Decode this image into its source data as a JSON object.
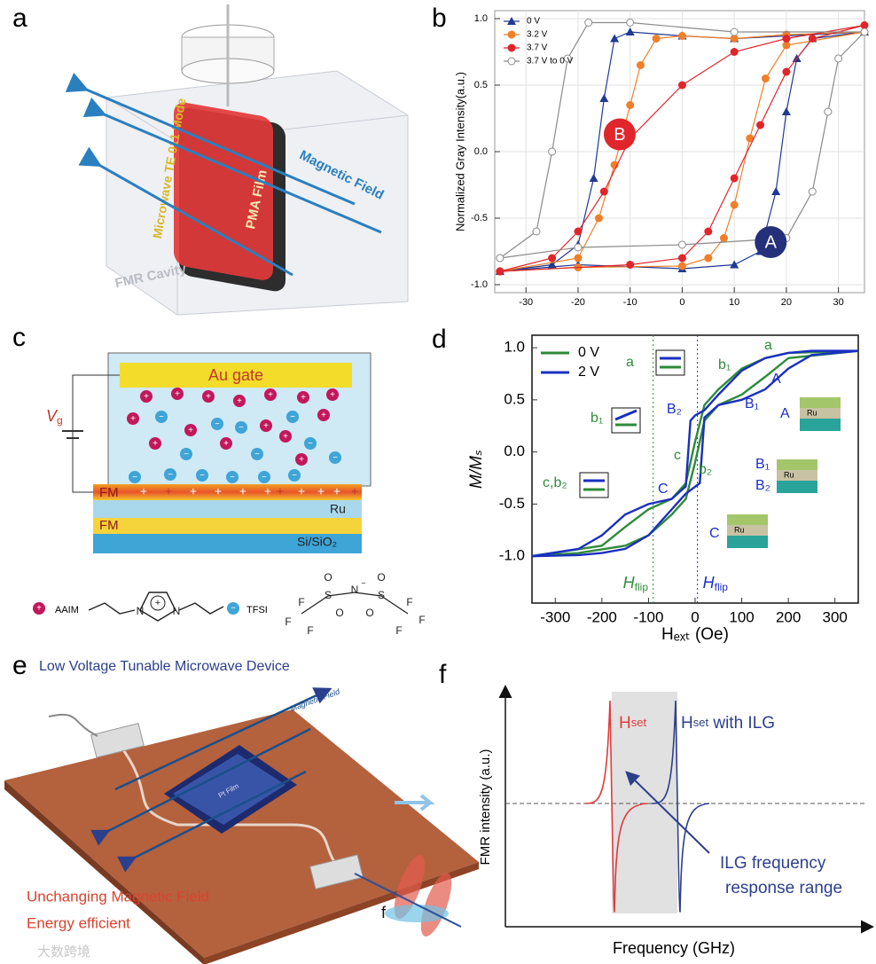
{
  "chart_data": [
    {
      "type": "line",
      "label": "b",
      "ylabel": "Normalized Gray Intensity(a.u.)",
      "xlim": [
        -36,
        35
      ],
      "ylim": [
        -1.06,
        1.06
      ],
      "xticks": [
        -30,
        -20,
        -10,
        0,
        10,
        20,
        30
      ],
      "yticks": [
        {
          "value": -1,
          "label": "-1.0"
        },
        -0.5,
        {
          "value": 0,
          "label": "0.0"
        },
        0.5,
        {
          "value": 1,
          "label": "1.0"
        }
      ],
      "grid": true,
      "legend": "upper left",
      "series": [
        {
          "name": "0 V",
          "color": "#1f3a93",
          "marker": "triangle",
          "x": [
            -35,
            -20,
            0,
            10,
            15,
            18,
            20,
            22,
            25,
            35,
            20,
            10,
            0,
            -10,
            -13,
            -15,
            -17,
            -20,
            -25,
            -35
          ],
          "values": [
            -0.9,
            -0.85,
            -0.88,
            -0.85,
            -0.75,
            -0.3,
            0.3,
            0.7,
            0.85,
            0.9,
            0.87,
            0.85,
            0.87,
            0.9,
            0.85,
            0.4,
            -0.2,
            -0.7,
            -0.85,
            -0.9
          ]
        },
        {
          "name": "3.2 V",
          "color": "#f07f2a",
          "marker": "circle",
          "x": [
            -35,
            -20,
            0,
            5,
            8,
            10,
            13,
            16,
            20,
            35,
            20,
            10,
            0,
            -5,
            -8,
            -10,
            -13,
            -16,
            -20,
            -35
          ],
          "values": [
            -0.9,
            -0.87,
            -0.86,
            -0.8,
            -0.65,
            -0.4,
            0.1,
            0.55,
            0.8,
            0.9,
            0.88,
            0.85,
            0.87,
            0.85,
            0.65,
            0.35,
            -0.1,
            -0.5,
            -0.8,
            -0.9
          ]
        },
        {
          "name": "3.7 V",
          "color": "#e0262b",
          "marker": "circle",
          "x": [
            -35,
            -10,
            0,
            5,
            10,
            15,
            20,
            25,
            35,
            20,
            10,
            0,
            -10,
            -15,
            -20,
            -25,
            -35
          ],
          "values": [
            -0.9,
            -0.85,
            -0.8,
            -0.6,
            -0.2,
            0.2,
            0.6,
            0.85,
            0.95,
            0.85,
            0.75,
            0.5,
            0.1,
            -0.3,
            -0.6,
            -0.8,
            -0.9
          ]
        },
        {
          "name": "3.7 V to 0 V",
          "color": "#8a8a8a",
          "marker": "open-circle",
          "x": [
            -35,
            -20,
            0,
            20,
            25,
            28,
            30,
            35,
            10,
            -10,
            -18,
            -22,
            -25,
            -28,
            -35
          ],
          "values": [
            -0.8,
            -0.72,
            -0.7,
            -0.65,
            -0.3,
            0.3,
            0.7,
            0.9,
            0.9,
            0.97,
            0.97,
            0.7,
            0,
            -0.6,
            -0.8
          ]
        }
      ],
      "annotations": [
        {
          "text": "A",
          "color": "#24307a"
        },
        {
          "text": "B",
          "color": "#e0262b"
        }
      ]
    },
    {
      "type": "line",
      "label": "d",
      "ylabel": "M/Mₛ",
      "xlabel": "Hₑₓₜ (Oe)",
      "xlim": [
        -350,
        350
      ],
      "ylim": [
        -1.45,
        1.12
      ],
      "xticks": [
        -300,
        -200,
        -100,
        0,
        100,
        200,
        300
      ],
      "yticks": [
        {
          "value": -1,
          "label": "-1.0"
        },
        -0.5,
        {
          "value": 0,
          "label": "0.0"
        },
        0.5,
        {
          "value": 1,
          "label": "1.0"
        }
      ],
      "grid": false,
      "legend": "upper left",
      "series": [
        {
          "name": "0 V",
          "color": "#2e8b3a",
          "x": [
            -350,
            -250,
            -150,
            -100,
            -50,
            -20,
            0,
            20,
            50,
            100,
            150,
            200,
            350,
            200,
            150,
            100,
            50,
            20,
            0,
            -20,
            -50,
            -100,
            -150,
            -200,
            -350
          ],
          "values": [
            -1,
            -0.97,
            -0.9,
            -0.8,
            -0.6,
            -0.45,
            -0.1,
            0.3,
            0.45,
            0.55,
            0.72,
            0.9,
            0.97,
            0.95,
            0.9,
            0.8,
            0.6,
            0.45,
            0.1,
            -0.3,
            -0.45,
            -0.55,
            -0.72,
            -0.9,
            -1
          ]
        },
        {
          "name": "2 V",
          "color": "#1a2fc0",
          "x": [
            -350,
            -250,
            -200,
            -150,
            -100,
            -50,
            -20,
            10,
            20,
            50,
            100,
            150,
            200,
            250,
            350,
            250,
            200,
            150,
            100,
            50,
            20,
            0,
            -10,
            -20,
            -50,
            -100,
            -150,
            -200,
            -250,
            -350
          ],
          "values": [
            -1,
            -0.99,
            -0.97,
            -0.93,
            -0.8,
            -0.55,
            -0.4,
            -0.3,
            0.33,
            0.45,
            0.5,
            0.6,
            0.8,
            0.93,
            0.97,
            0.97,
            0.95,
            0.9,
            0.78,
            0.55,
            0.4,
            0.35,
            0.3,
            -0.33,
            -0.45,
            -0.5,
            -0.6,
            -0.8,
            -0.93,
            -1
          ]
        }
      ],
      "vlines": [
        {
          "x": -90,
          "color": "#2e8b3a",
          "main": "H",
          "sub": "flip"
        },
        {
          "x": 5,
          "color": "#1a2fc0",
          "main": "H",
          "sub": "flip"
        }
      ],
      "annotations": [
        {
          "text": "a",
          "color": "#2e8b3a"
        },
        {
          "text": "b₁",
          "color": "#2e8b3a"
        },
        {
          "text": "c,b₂",
          "color": "#2e8b3a"
        },
        {
          "text": "B₂",
          "color": "#1a2fc0"
        },
        {
          "text": "c",
          "color": "#2e8b3a"
        },
        {
          "text": "C",
          "color": "#1a2fc0"
        },
        {
          "text": "b₂",
          "color": "#2e8b3a"
        },
        {
          "text": "a",
          "color": "#2e8b3a"
        },
        {
          "text": "b₁",
          "color": "#2e8b3a"
        },
        {
          "text": "A",
          "color": "#1a2fc0"
        },
        {
          "text": "B₁",
          "color": "#1a2fc0"
        },
        {
          "text": "A",
          "color": "#1a2fc0"
        },
        {
          "text": "B₁",
          "color": "#1a2fc0"
        },
        {
          "text": "B₂",
          "color": "#1a2fc0"
        },
        {
          "text": "C",
          "color": "#1a2fc0"
        }
      ],
      "inset_label": "Ru"
    }
  ],
  "panel_a": {
    "label": "a",
    "mode": "Microwave TE 011 Mode",
    "film": "PMA Film",
    "field": "Magnetic Field",
    "cavity": "FMR Cavity"
  },
  "panel_c": {
    "label": "c",
    "gate": "Au gate",
    "voltage": {
      "main": "V",
      "sub": "g"
    },
    "plus": "+",
    "minus": "−",
    "layers": [
      "FM",
      "Ru",
      "FM",
      "Si/SiO₂"
    ],
    "cation": {
      "name": "AAIM",
      "atoms": [
        "N",
        "N",
        "+"
      ]
    },
    "anion": {
      "name": "TFSI",
      "atoms": [
        "F",
        "F",
        "F",
        "S",
        "O",
        "O",
        "N",
        "−",
        "S",
        "O",
        "O",
        "F",
        "F",
        "F"
      ]
    }
  },
  "panel_e": {
    "label": "e",
    "title": "Low Voltage Tunable Microwave Device",
    "field": "Magnetic Field",
    "film": "Pt Film",
    "notes": [
      "Unchanging Magnetic Field",
      "Energy efficient"
    ],
    "f": "f"
  },
  "panel_f": {
    "label": "f",
    "hset": {
      "main": "H",
      "sub": "set"
    },
    "ilg": " with ILG",
    "ylabel": "FMR intensity (a.u.)",
    "xlabel": "Frequency (GHz)",
    "range": [
      "ILG  frequency",
      "response range"
    ]
  },
  "watermark": "大数跨境"
}
